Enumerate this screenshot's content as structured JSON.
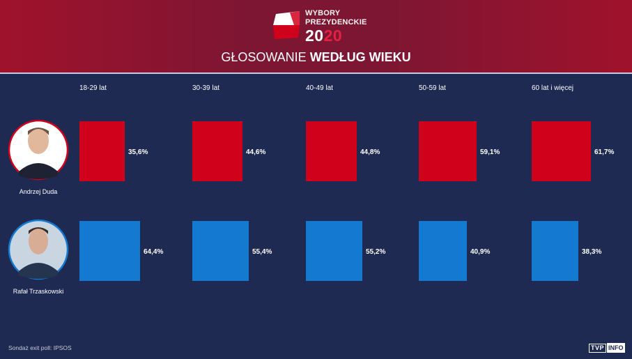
{
  "header": {
    "logo_line1": "WYBORY",
    "logo_line2": "PREZYDENCKIE",
    "logo_year_a": "20",
    "logo_year_b": "20",
    "title_regular": "GŁOSOWANIE ",
    "title_bold": "WEDŁUG WIEKU"
  },
  "colors": {
    "background": "#1f2a52",
    "header": "#8a1531",
    "duda": "#d0021b",
    "trzaskowski": "#1479d1"
  },
  "chart_data": {
    "type": "bar",
    "title": "GŁOSOWANIE WEDŁUG WIEKU",
    "categories": [
      "18-29 lat",
      "30-39 lat",
      "40-49 lat",
      "50-59 lat",
      "60 lat i więcej"
    ],
    "series": [
      {
        "name": "Andrzej Duda",
        "color": "#d0021b",
        "values": [
          35.6,
          44.6,
          44.8,
          59.1,
          61.7
        ],
        "labels": [
          "35,6%",
          "44,6%",
          "44,8%",
          "59,1%",
          "61,7%"
        ]
      },
      {
        "name": "Rafał Trzaskowski",
        "color": "#1479d1",
        "values": [
          64.4,
          55.4,
          55.2,
          40.9,
          38.3
        ],
        "labels": [
          "64,4%",
          "55,4%",
          "55,2%",
          "40,9%",
          "38,3%"
        ]
      }
    ],
    "value_max": 64.4
  },
  "footer": {
    "source": "Sondaż exit poll: IPSOS",
    "brand_a": "TVP",
    "brand_b": "INFO"
  }
}
